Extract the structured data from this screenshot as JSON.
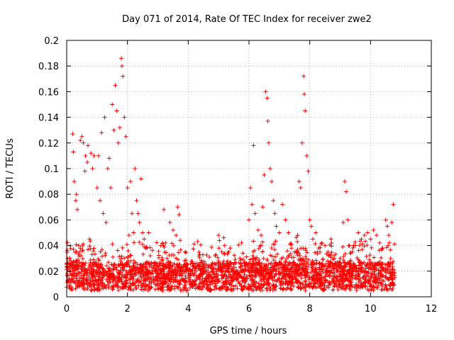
{
  "chart_data": {
    "type": "scatter",
    "title": "Day 071 of 2014, Rate Of TEC Index for receiver zwe2",
    "xlabel": "GPS time / hours",
    "ylabel": "ROTI / TECUs",
    "xlim": [
      0,
      12
    ],
    "ylim": [
      0,
      0.2
    ],
    "xticks": [
      0,
      2,
      4,
      6,
      8,
      10,
      12
    ],
    "yticks": [
      0,
      0.02,
      0.04,
      0.06,
      0.08,
      0.1,
      0.12,
      0.14,
      0.16,
      0.18,
      0.2
    ],
    "xtick_labels": [
      "0",
      "2",
      "4",
      "6",
      "8",
      "10",
      "12"
    ],
    "ytick_labels": [
      "0",
      "0.02",
      "0.04",
      "0.06",
      "0.08",
      "0.1",
      "0.12",
      "0.14",
      "0.16",
      "0.18",
      "0.2"
    ],
    "grid": true,
    "marker": "+",
    "marker_color": "#ff0000",
    "x_data_range": [
      0,
      10.8
    ],
    "series": [
      {
        "name": "ROTI",
        "points": [
          [
            0.05,
            0.012
          ],
          [
            0.1,
            0.03
          ],
          [
            0.12,
            0.02
          ],
          [
            0.2,
            0.127
          ],
          [
            0.22,
            0.113
          ],
          [
            0.25,
            0.09
          ],
          [
            0.3,
            0.075
          ],
          [
            0.32,
            0.08
          ],
          [
            0.35,
            0.068
          ],
          [
            0.4,
            0.04
          ],
          [
            0.45,
            0.122
          ],
          [
            0.5,
            0.125
          ],
          [
            0.55,
            0.12
          ],
          [
            0.6,
            0.098
          ],
          [
            0.62,
            0.11
          ],
          [
            0.68,
            0.105
          ],
          [
            0.7,
            0.118
          ],
          [
            0.75,
            0.045
          ],
          [
            0.8,
            0.112
          ],
          [
            0.85,
            0.1
          ],
          [
            0.9,
            0.11
          ],
          [
            1.0,
            0.085
          ],
          [
            1.05,
            0.11
          ],
          [
            1.1,
            0.075
          ],
          [
            1.15,
            0.128
          ],
          [
            1.2,
            0.065
          ],
          [
            1.25,
            0.14
          ],
          [
            1.3,
            0.058
          ],
          [
            1.35,
            0.1
          ],
          [
            1.4,
            0.108
          ],
          [
            1.45,
            0.085
          ],
          [
            1.5,
            0.15
          ],
          [
            1.55,
            0.13
          ],
          [
            1.6,
            0.165
          ],
          [
            1.65,
            0.145
          ],
          [
            1.7,
            0.12
          ],
          [
            1.75,
            0.132
          ],
          [
            1.8,
            0.186
          ],
          [
            1.82,
            0.18
          ],
          [
            1.85,
            0.172
          ],
          [
            1.9,
            0.14
          ],
          [
            1.95,
            0.125
          ],
          [
            2.0,
            0.085
          ],
          [
            2.05,
            0.048
          ],
          [
            2.1,
            0.09
          ],
          [
            2.15,
            0.065
          ],
          [
            2.2,
            0.05
          ],
          [
            2.25,
            0.1
          ],
          [
            2.3,
            0.075
          ],
          [
            2.35,
            0.065
          ],
          [
            2.4,
            0.058
          ],
          [
            2.45,
            0.092
          ],
          [
            2.5,
            0.05
          ],
          [
            2.55,
            0.045
          ],
          [
            2.6,
            0.038
          ],
          [
            2.7,
            0.05
          ],
          [
            2.75,
            0.032
          ],
          [
            2.8,
            0.018
          ],
          [
            2.9,
            0.02
          ],
          [
            3.0,
            0.015
          ],
          [
            3.1,
            0.04
          ],
          [
            3.2,
            0.068
          ],
          [
            3.3,
            0.03
          ],
          [
            3.4,
            0.058
          ],
          [
            3.5,
            0.052
          ],
          [
            3.6,
            0.048
          ],
          [
            3.65,
            0.07
          ],
          [
            3.7,
            0.064
          ],
          [
            3.8,
            0.018
          ],
          [
            3.9,
            0.035
          ],
          [
            4.0,
            0.015
          ],
          [
            4.2,
            0.022
          ],
          [
            4.4,
            0.018
          ],
          [
            4.6,
            0.025
          ],
          [
            4.8,
            0.02
          ],
          [
            5.0,
            0.048
          ],
          [
            5.1,
            0.035
          ],
          [
            5.2,
            0.04
          ],
          [
            5.3,
            0.028
          ],
          [
            5.5,
            0.02
          ],
          [
            5.7,
            0.03
          ],
          [
            5.8,
            0.034
          ],
          [
            5.9,
            0.025
          ],
          [
            6.0,
            0.06
          ],
          [
            6.05,
            0.085
          ],
          [
            6.1,
            0.072
          ],
          [
            6.15,
            0.118
          ],
          [
            6.2,
            0.065
          ],
          [
            6.3,
            0.052
          ],
          [
            6.4,
            0.048
          ],
          [
            6.45,
            0.07
          ],
          [
            6.5,
            0.095
          ],
          [
            6.55,
            0.16
          ],
          [
            6.6,
            0.155
          ],
          [
            6.62,
            0.137
          ],
          [
            6.65,
            0.12
          ],
          [
            6.7,
            0.1
          ],
          [
            6.75,
            0.09
          ],
          [
            6.8,
            0.075
          ],
          [
            6.85,
            0.065
          ],
          [
            6.9,
            0.055
          ],
          [
            7.0,
            0.05
          ],
          [
            7.1,
            0.072
          ],
          [
            7.2,
            0.06
          ],
          [
            7.3,
            0.05
          ],
          [
            7.4,
            0.038
          ],
          [
            7.5,
            0.035
          ],
          [
            7.6,
            0.048
          ],
          [
            7.65,
            0.09
          ],
          [
            7.7,
            0.085
          ],
          [
            7.75,
            0.12
          ],
          [
            7.8,
            0.172
          ],
          [
            7.82,
            0.158
          ],
          [
            7.85,
            0.145
          ],
          [
            7.9,
            0.11
          ],
          [
            7.95,
            0.098
          ],
          [
            8.0,
            0.06
          ],
          [
            8.05,
            0.055
          ],
          [
            8.1,
            0.045
          ],
          [
            8.2,
            0.05
          ],
          [
            8.3,
            0.038
          ],
          [
            8.4,
            0.042
          ],
          [
            8.5,
            0.04
          ],
          [
            8.6,
            0.035
          ],
          [
            8.7,
            0.045
          ],
          [
            8.8,
            0.032
          ],
          [
            8.9,
            0.025
          ],
          [
            9.0,
            0.03
          ],
          [
            9.1,
            0.058
          ],
          [
            9.15,
            0.09
          ],
          [
            9.2,
            0.082
          ],
          [
            9.25,
            0.06
          ],
          [
            9.3,
            0.04
          ],
          [
            9.4,
            0.035
          ],
          [
            9.5,
            0.04
          ],
          [
            9.6,
            0.05
          ],
          [
            9.7,
            0.045
          ],
          [
            9.8,
            0.048
          ],
          [
            9.9,
            0.05
          ],
          [
            10.0,
            0.045
          ],
          [
            10.1,
            0.052
          ],
          [
            10.2,
            0.048
          ],
          [
            10.3,
            0.042
          ],
          [
            10.4,
            0.038
          ],
          [
            10.5,
            0.06
          ],
          [
            10.55,
            0.055
          ],
          [
            10.6,
            0.048
          ],
          [
            10.7,
            0.058
          ],
          [
            10.75,
            0.072
          ],
          [
            10.8,
            0.015
          ]
        ]
      }
    ]
  }
}
